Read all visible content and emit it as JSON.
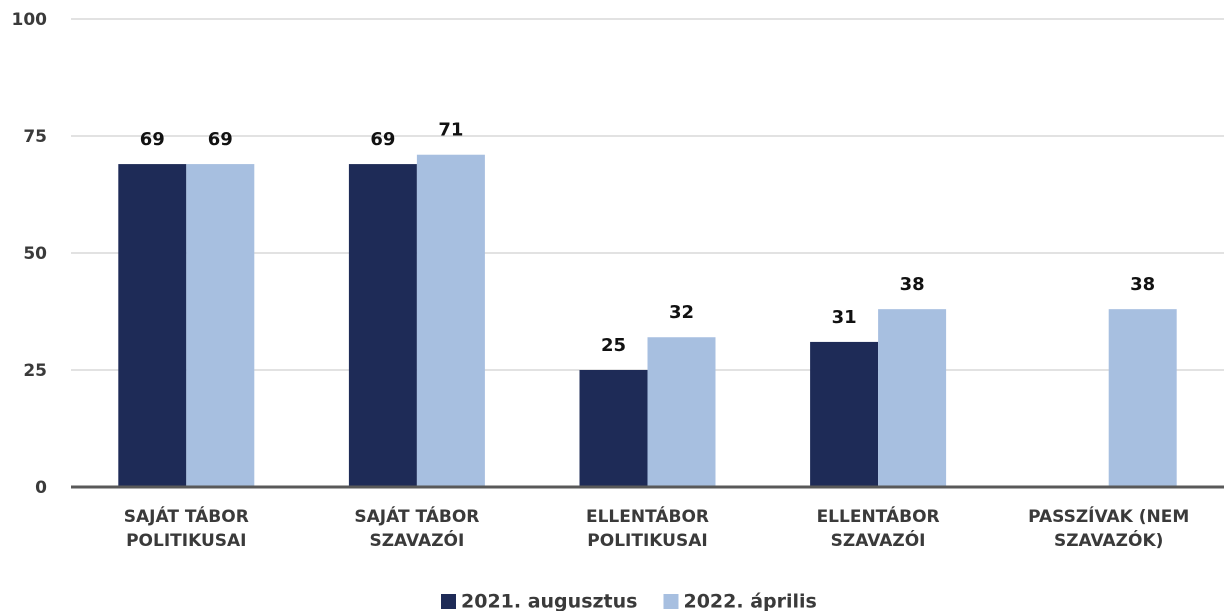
{
  "chart_data": {
    "type": "bar",
    "categories": [
      "SAJÁT TÁBOR POLITIKUSAI",
      "SAJÁT TÁBOR SZAVAZÓI",
      "ELLENTÁBOR POLITIKUSAI",
      "ELLENTÁBOR SZAVAZÓI",
      "PASSZÍVAK (NEM SZAVAZÓK)"
    ],
    "series": [
      {
        "name": "2021. augusztus",
        "color": "#1e2b57",
        "values": [
          69,
          69,
          25,
          31,
          null
        ]
      },
      {
        "name": "2022. április",
        "color": "#a7bfe0",
        "values": [
          69,
          71,
          32,
          38,
          38
        ]
      }
    ],
    "ylim": [
      0,
      100
    ],
    "yticks": [
      0,
      25,
      50,
      75,
      100
    ],
    "grid": true,
    "legend": "bottom"
  }
}
